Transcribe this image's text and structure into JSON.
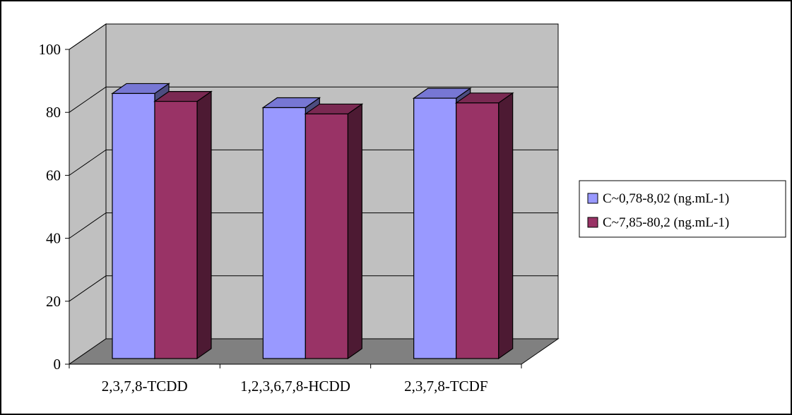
{
  "colors": {
    "wall": "#c0c0c0",
    "floor": "#808080",
    "series1_face": "#9999ff",
    "series1_top": "#7777d4",
    "series1_side": "#4d4d80",
    "series2_face": "#993366",
    "series2_top": "#7a2952",
    "series2_side": "#4d1a33",
    "stroke": "#000000"
  },
  "chart_data": {
    "type": "bar",
    "title": "",
    "xlabel": "",
    "ylabel": "",
    "ylim": [
      0,
      100
    ],
    "yticks": [
      "0",
      "20",
      "40",
      "60",
      "80",
      "100"
    ],
    "categories": [
      "2,3,7,8-TCDD",
      "1,2,3,6,7,8-HCDD",
      "2,3,7,8-TCDF"
    ],
    "series": [
      {
        "name": "C~0,78-8,02 (ng.mL-1)",
        "values": [
          86,
          81.5,
          84.5
        ]
      },
      {
        "name": "C~7,85-80,2 (ng.mL-1)",
        "values": [
          83.5,
          79.5,
          83
        ]
      }
    ],
    "grid": true,
    "legend": "right",
    "style": "3d-clustered-column"
  }
}
